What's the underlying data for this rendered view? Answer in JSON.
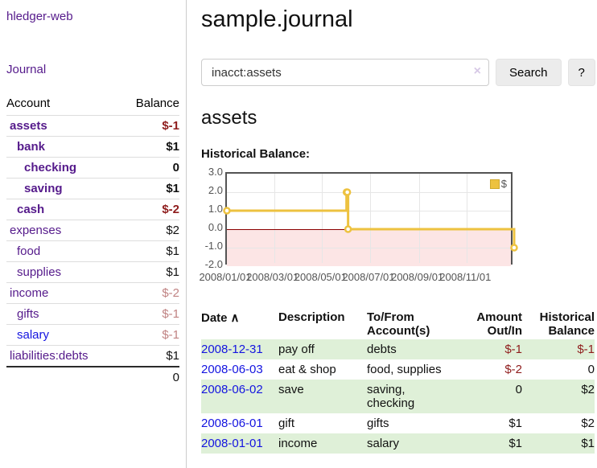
{
  "sidebar": {
    "brand": "hledger-web",
    "nav": {
      "journal_label": "Journal"
    },
    "accounts_table": {
      "headers": {
        "account": "Account",
        "balance": "Balance"
      },
      "rows": [
        {
          "label": "assets",
          "balance": "$-1",
          "indent": 0,
          "bold": true,
          "link_class": "acct-visited",
          "balance_class": "negative"
        },
        {
          "label": "bank",
          "balance": "$1",
          "indent": 1,
          "bold": true,
          "link_class": "acct-visited",
          "balance_class": ""
        },
        {
          "label": "checking",
          "balance": "0",
          "indent": 2,
          "bold": true,
          "link_class": "acct-visited",
          "balance_class": ""
        },
        {
          "label": "saving",
          "balance": "$1",
          "indent": 2,
          "bold": true,
          "link_class": "acct-visited",
          "balance_class": ""
        },
        {
          "label": "cash",
          "balance": "$-2",
          "indent": 1,
          "bold": true,
          "link_class": "acct-visited",
          "balance_class": "negative"
        },
        {
          "label": "expenses",
          "balance": "$2",
          "indent": 0,
          "bold": false,
          "link_class": "acct-visited",
          "balance_class": ""
        },
        {
          "label": "food",
          "balance": "$1",
          "indent": 1,
          "bold": false,
          "link_class": "acct-visited",
          "balance_class": ""
        },
        {
          "label": "supplies",
          "balance": "$1",
          "indent": 1,
          "bold": false,
          "link_class": "acct-visited",
          "balance_class": ""
        },
        {
          "label": "income",
          "balance": "$-2",
          "indent": 0,
          "bold": false,
          "link_class": "acct-visited",
          "balance_class": "neg-muted"
        },
        {
          "label": "gifts",
          "balance": "$-1",
          "indent": 1,
          "bold": false,
          "link_class": "acct-visited",
          "balance_class": "neg-muted"
        },
        {
          "label": "salary",
          "balance": "$-1",
          "indent": 1,
          "bold": false,
          "link_class": "acct-new",
          "balance_class": "neg-muted"
        },
        {
          "label": "liabilities:debts",
          "balance": "$1",
          "indent": 0,
          "bold": false,
          "link_class": "acct-visited",
          "balance_class": ""
        }
      ],
      "total": "0"
    }
  },
  "header": {
    "title": "sample.journal"
  },
  "search": {
    "value": "inacct:assets",
    "clear_icon": "×",
    "button_label": "Search",
    "help_label": "?"
  },
  "account_page": {
    "heading": "assets",
    "chart_label": "Historical Balance:"
  },
  "chart_data": {
    "type": "line",
    "title": "Historical Balance",
    "step": true,
    "legend": "$",
    "line_color": "#edc240",
    "zero_line_color": "#8b0000",
    "negative_region_color": "#fce5e5",
    "ylim": [
      -2.0,
      3.0
    ],
    "yticks": [
      "3.0",
      "2.0",
      "1.0",
      "0.0",
      "-1.0",
      "-2.0"
    ],
    "xticks": [
      "2008/01/01",
      "2008/03/01",
      "2008/05/01",
      "2008/07/01",
      "2008/09/01",
      "2008/11/01"
    ],
    "series": [
      {
        "name": "$",
        "points": [
          {
            "date": "2008-01-01",
            "value": 1
          },
          {
            "date": "2008-06-01",
            "value": 2
          },
          {
            "date": "2008-06-02",
            "value": 2
          },
          {
            "date": "2008-06-03",
            "value": 0
          },
          {
            "date": "2008-12-31",
            "value": -1
          }
        ]
      }
    ]
  },
  "transactions": {
    "sort_icon": "∧",
    "columns": [
      {
        "label": "Date",
        "align": "left",
        "sortable": true
      },
      {
        "label": "Description",
        "align": "left",
        "sortable": false
      },
      {
        "label": "To/From Account(s)",
        "align": "left",
        "sortable": false
      },
      {
        "label": "Amount Out/In",
        "align": "right",
        "sortable": false
      },
      {
        "label": "Historical Balance",
        "align": "right",
        "sortable": false
      }
    ],
    "rows": [
      {
        "date": "2008-12-31",
        "description": "pay off",
        "accounts": "debts",
        "amount": "$-1",
        "amount_class": "negative",
        "balance": "$-1",
        "balance_class": "negative",
        "striped": true
      },
      {
        "date": "2008-06-03",
        "description": "eat & shop",
        "accounts": "food, supplies",
        "amount": "$-2",
        "amount_class": "negative",
        "balance": "0",
        "balance_class": "",
        "striped": false
      },
      {
        "date": "2008-06-02",
        "description": "save",
        "accounts": "saving, checking",
        "amount": "0",
        "amount_class": "",
        "balance": "$2",
        "balance_class": "",
        "striped": true
      },
      {
        "date": "2008-06-01",
        "description": "gift",
        "accounts": "gifts",
        "amount": "$1",
        "amount_class": "",
        "balance": "$2",
        "balance_class": "",
        "striped": false
      },
      {
        "date": "2008-01-01",
        "description": "income",
        "accounts": "salary",
        "amount": "$1",
        "amount_class": "",
        "balance": "$1",
        "balance_class": "",
        "striped": true
      }
    ]
  }
}
